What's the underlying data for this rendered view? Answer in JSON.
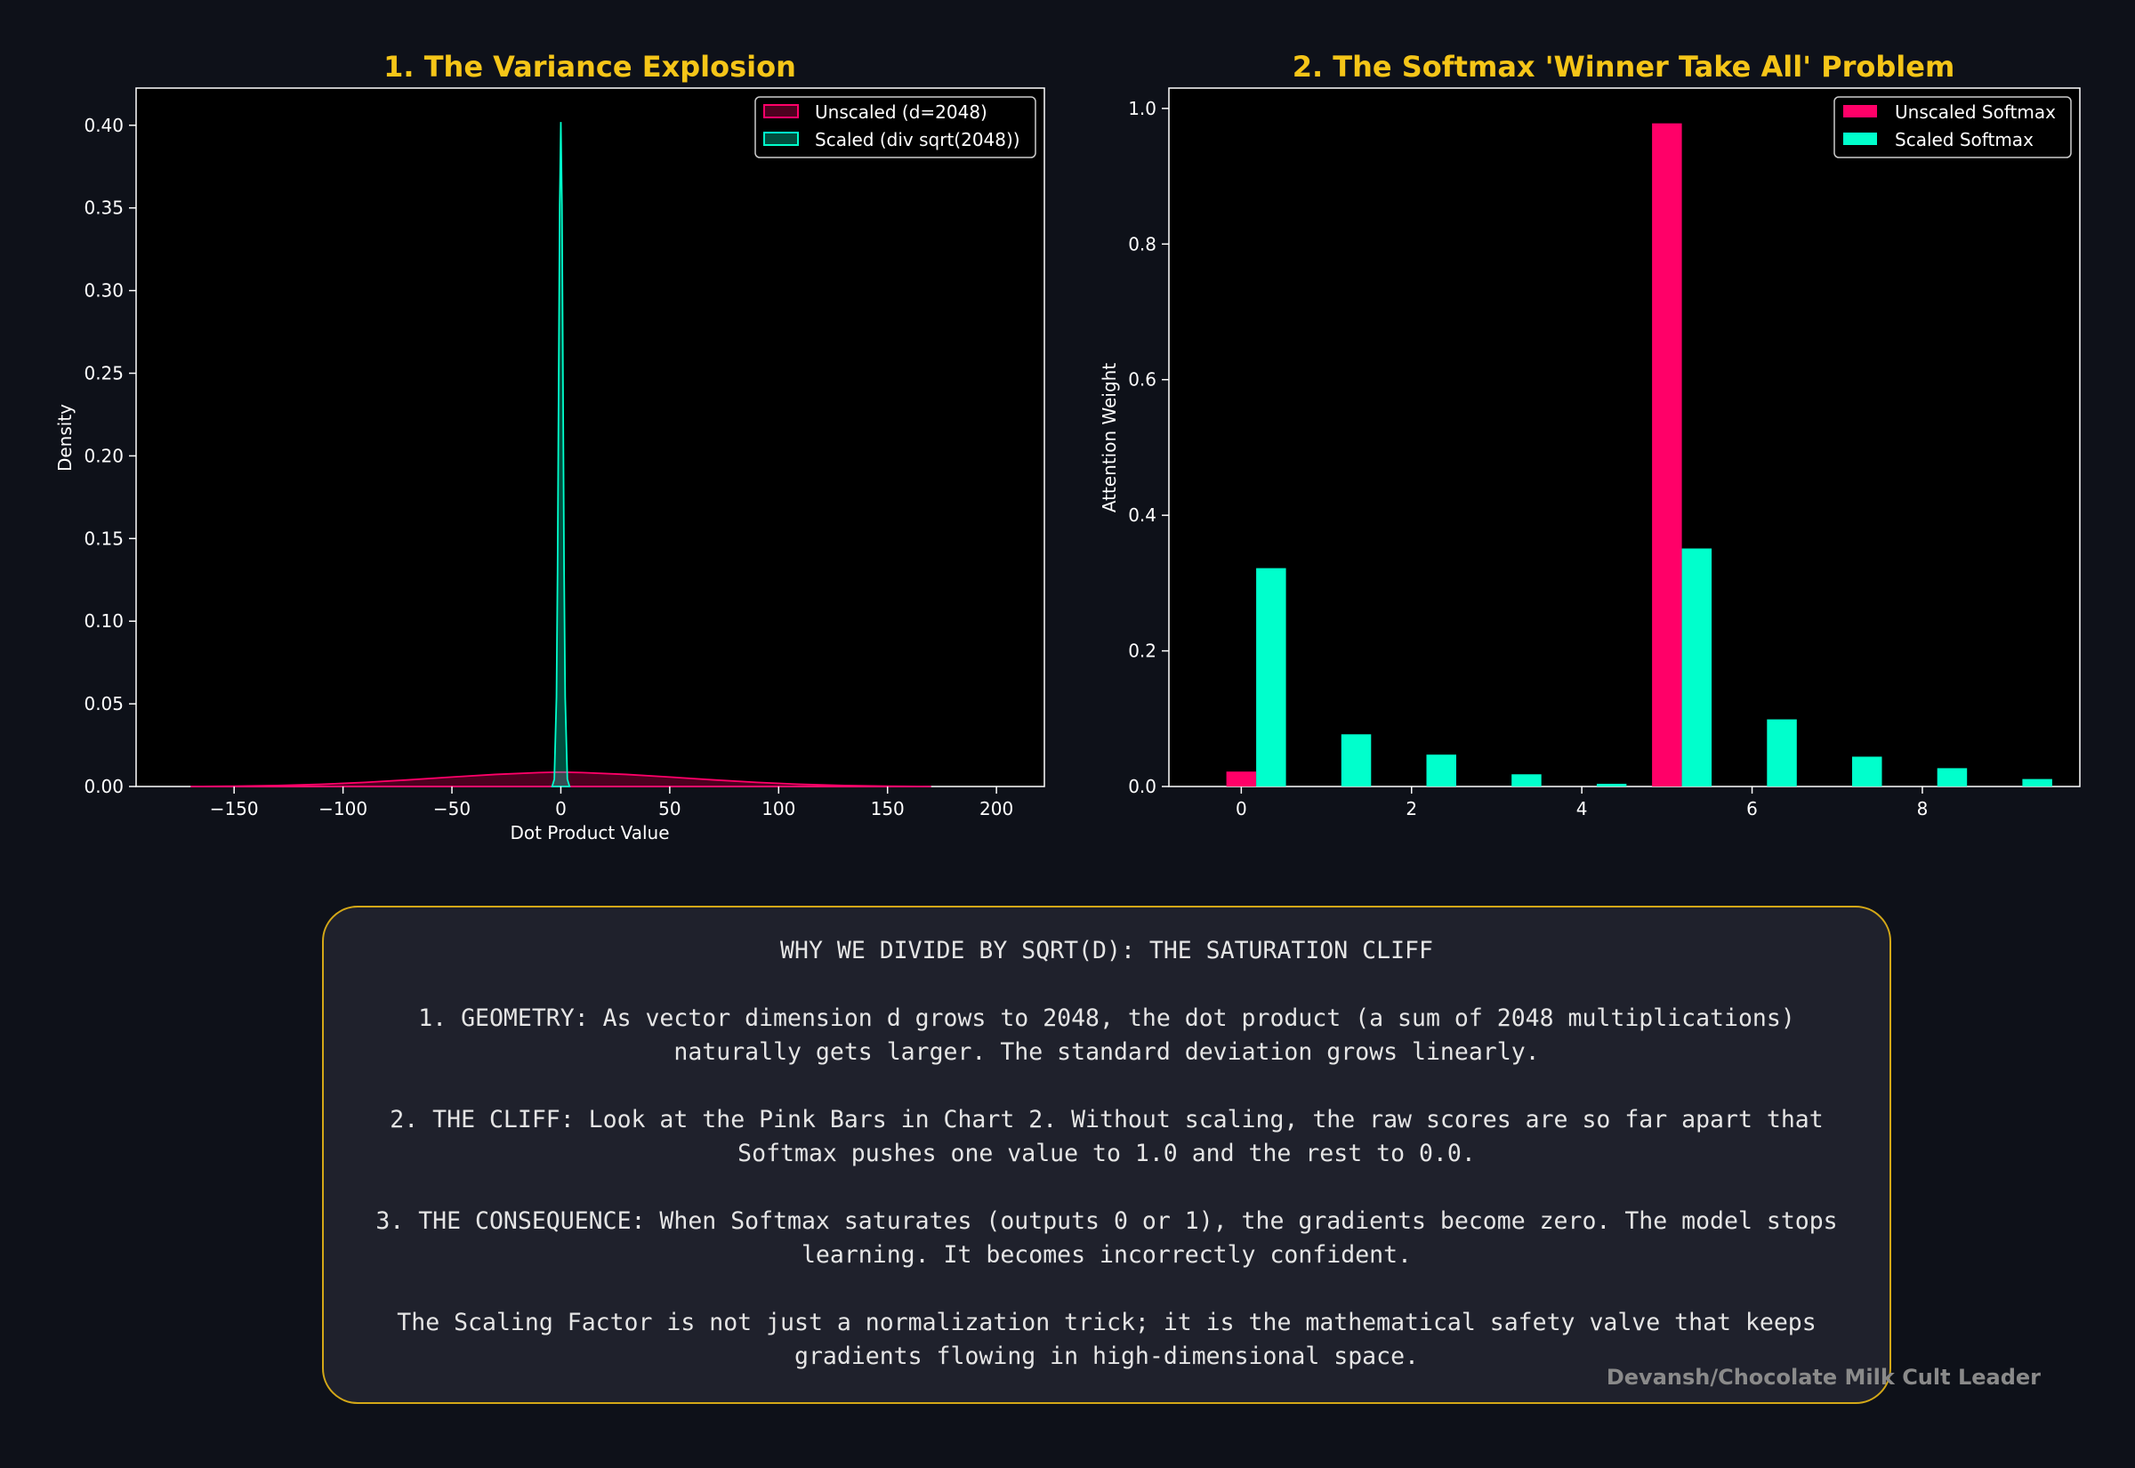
{
  "colors": {
    "unscaled": "#ff0068",
    "scaled": "#00ffcc",
    "title": "#f5c518",
    "axes_bg": "#000000",
    "text": "#ffffff"
  },
  "chart_data": [
    {
      "type": "area",
      "title": "1. The Variance Explosion",
      "xlabel": "Dot Product Value",
      "ylabel": "Density",
      "xlim": [
        -195,
        222
      ],
      "ylim": [
        0,
        0.4225
      ],
      "xticks": [
        -150,
        -100,
        -50,
        0,
        50,
        100,
        150,
        200
      ],
      "xtick_labels": [
        "−150",
        "−100",
        "−50",
        "0",
        "50",
        "100",
        "150",
        "200"
      ],
      "yticks": [
        0.0,
        0.05,
        0.1,
        0.15,
        0.2,
        0.25,
        0.3,
        0.35,
        0.4
      ],
      "ytick_labels": [
        "0.00",
        "0.05",
        "0.10",
        "0.15",
        "0.20",
        "0.25",
        "0.30",
        "0.35",
        "0.40"
      ],
      "legend_position": "top-right",
      "grid": false,
      "series": [
        {
          "name": "Unscaled (d=2048)",
          "x": [
            -170,
            -150,
            -130,
            -110,
            -90,
            -70,
            -50,
            -30,
            -10,
            0,
            10,
            30,
            50,
            70,
            90,
            110,
            130,
            150,
            170
          ],
          "y": [
            0.0,
            0.0002,
            0.0006,
            0.0013,
            0.0025,
            0.004,
            0.0057,
            0.0073,
            0.0084,
            0.0087,
            0.0084,
            0.0073,
            0.0057,
            0.004,
            0.0025,
            0.0013,
            0.0006,
            0.0002,
            0.0
          ]
        },
        {
          "name": "Scaled (div sqrt(2048))",
          "x": [
            -4,
            -3,
            -2,
            -1.5,
            -1,
            -0.5,
            0,
            0.5,
            1,
            1.5,
            2,
            3,
            4
          ],
          "y": [
            0.0,
            0.0044,
            0.054,
            0.13,
            0.242,
            0.352,
            0.402,
            0.352,
            0.242,
            0.13,
            0.054,
            0.0044,
            0.0
          ]
        }
      ]
    },
    {
      "type": "bar",
      "title": "2. The Softmax 'Winner Take All' Problem",
      "xlabel": "",
      "ylabel": "Attention Weight",
      "xlim": [
        -0.85,
        9.85
      ],
      "ylim": [
        0,
        1.03
      ],
      "xticks": [
        0,
        2,
        4,
        6,
        8
      ],
      "xtick_labels": [
        "0",
        "2",
        "4",
        "6",
        "8"
      ],
      "yticks": [
        0.0,
        0.2,
        0.4,
        0.6,
        0.8,
        1.0
      ],
      "ytick_labels": [
        "0.0",
        "0.2",
        "0.4",
        "0.6",
        "0.8",
        "1.0"
      ],
      "legend_position": "top-right",
      "grid": false,
      "categories": [
        0,
        1,
        2,
        3,
        4,
        5,
        6,
        7,
        8,
        9
      ],
      "series": [
        {
          "name": "Unscaled Softmax",
          "values": [
            0.022,
            0.0,
            0.0,
            0.0,
            0.0,
            0.978,
            0.0,
            0.0,
            0.0,
            0.0
          ]
        },
        {
          "name": "Scaled Softmax",
          "values": [
            0.322,
            0.077,
            0.047,
            0.018,
            0.004,
            0.351,
            0.099,
            0.044,
            0.027,
            0.011
          ]
        }
      ]
    }
  ],
  "info": {
    "heading": "WHY WE DIVIDE BY SQRT(D): THE SATURATION CLIFF",
    "p1_line1": "1. GEOMETRY: As vector dimension d grows to 2048, the dot product (a sum of 2048 multiplications)",
    "p1_line2": "naturally gets larger. The standard deviation grows linearly.",
    "p2_line1": "2. THE CLIFF: Look at the Pink Bars in Chart 2. Without scaling, the raw scores are so far apart that",
    "p2_line2": "Softmax pushes one value to 1.0 and the rest to 0.0.",
    "p3_line1": "3. THE CONSEQUENCE: When Softmax saturates (outputs 0 or 1), the gradients become zero. The model stops",
    "p3_line2": "learning. It becomes incorrectly confident.",
    "p4_line1": "The Scaling Factor is not just a normalization trick; it is the mathematical safety valve that keeps",
    "p4_line2": "gradients flowing in high-dimensional space."
  },
  "credit": "Devansh/Chocolate Milk Cult Leader"
}
